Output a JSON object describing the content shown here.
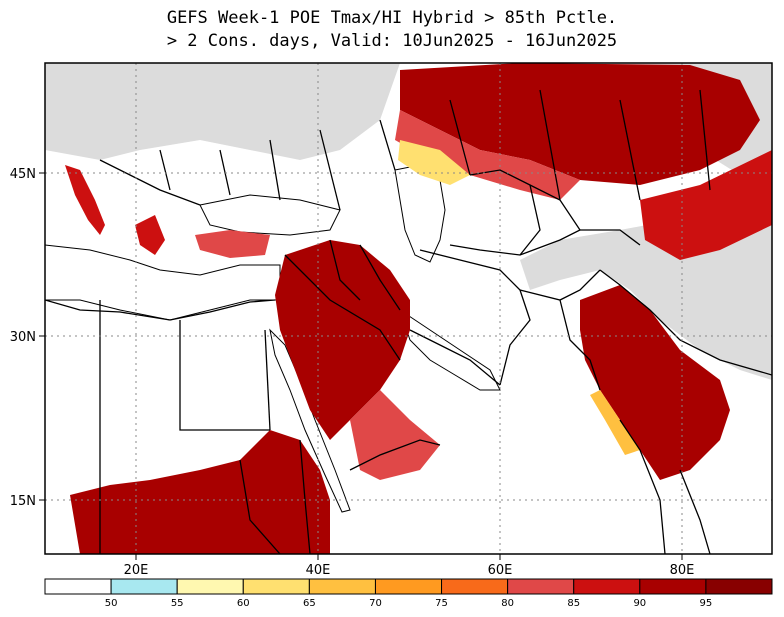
{
  "title": {
    "line1": "GEFS Week-1 POE Tmax/HI Hybrid > 85th Pctle.",
    "line2": "> 2 Cons. days, Valid: 10Jun2025 - 16Jun2025"
  },
  "map": {
    "lon_ticks": [
      "20E",
      "40E",
      "60E",
      "80E"
    ],
    "lat_ticks": [
      "45N",
      "30N",
      "15N"
    ]
  },
  "colorbar": {
    "labels": [
      "50",
      "55",
      "60",
      "65",
      "70",
      "75",
      "80",
      "85",
      "90",
      "95"
    ],
    "colors": [
      "#ffffff",
      "#a8e8f0",
      "#fff8b0",
      "#ffe070",
      "#ffc040",
      "#ff9a20",
      "#f86a1a",
      "#e04848",
      "#cc1010",
      "#a80000",
      "#880000"
    ]
  },
  "colors": {
    "land_gray": "#dcdcdc",
    "land_white": "#ffffff",
    "border": "#000000"
  }
}
